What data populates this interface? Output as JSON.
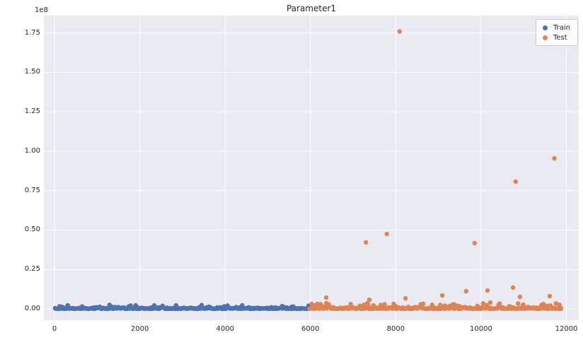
{
  "chart_data": {
    "type": "scatter",
    "title": "Parameter1",
    "y_offset_label": "1e8",
    "xlabel": "",
    "ylabel": "",
    "grid": true,
    "background": "#EAEAF2",
    "gridline_color": "#ffffff",
    "text_color": "#262626",
    "xlim": [
      -250,
      12290
    ],
    "ylim": [
      -7200000,
      186100000
    ],
    "x_ticks": [
      0,
      2000,
      4000,
      6000,
      8000,
      10000,
      12000
    ],
    "x_tick_labels": [
      "0",
      "2000",
      "4000",
      "6000",
      "8000",
      "10000",
      "12000"
    ],
    "y_ticks": [
      0,
      25000000,
      50000000,
      75000000,
      100000000,
      125000000,
      150000000,
      175000000
    ],
    "y_tick_labels": [
      "0.00",
      "0.25",
      "0.50",
      "0.75",
      "1.00",
      "1.25",
      "1.50",
      "1.75"
    ],
    "legend": {
      "position": "upper right",
      "entries": [
        "Train",
        "Test"
      ]
    },
    "series": [
      {
        "name": "Train",
        "color": "#4C72B0",
        "marker": "circle",
        "band": {
          "comment": "dense cluster of near-zero values",
          "x_range": [
            0,
            6020
          ],
          "y_base_max": 1200000,
          "bump_max": 2600000,
          "bump_fraction": 0.12,
          "n": 300,
          "seed": 42
        },
        "outliers": []
      },
      {
        "name": "Test",
        "color": "#DD8452",
        "marker": "circle",
        "band": {
          "comment": "dense cluster of near-zero values",
          "x_range": [
            5980,
            11890
          ],
          "y_base_max": 1600000,
          "bump_max": 3600000,
          "bump_fraction": 0.16,
          "n": 300,
          "seed": 7
        },
        "outliers": [
          [
            8090,
            176000000
          ],
          [
            11720,
            95500000
          ],
          [
            10810,
            80700000
          ],
          [
            7790,
            47500000
          ],
          [
            7300,
            42200000
          ],
          [
            9850,
            41700000
          ],
          [
            6370,
            7200000
          ],
          [
            6370,
            3600000
          ],
          [
            7380,
            5800000
          ],
          [
            8230,
            6700000
          ],
          [
            9090,
            8500000
          ],
          [
            9650,
            11200000
          ],
          [
            10150,
            11700000
          ],
          [
            10215,
            4000000
          ],
          [
            10750,
            13500000
          ],
          [
            10910,
            7600000
          ],
          [
            11610,
            8100000
          ]
        ]
      }
    ]
  }
}
